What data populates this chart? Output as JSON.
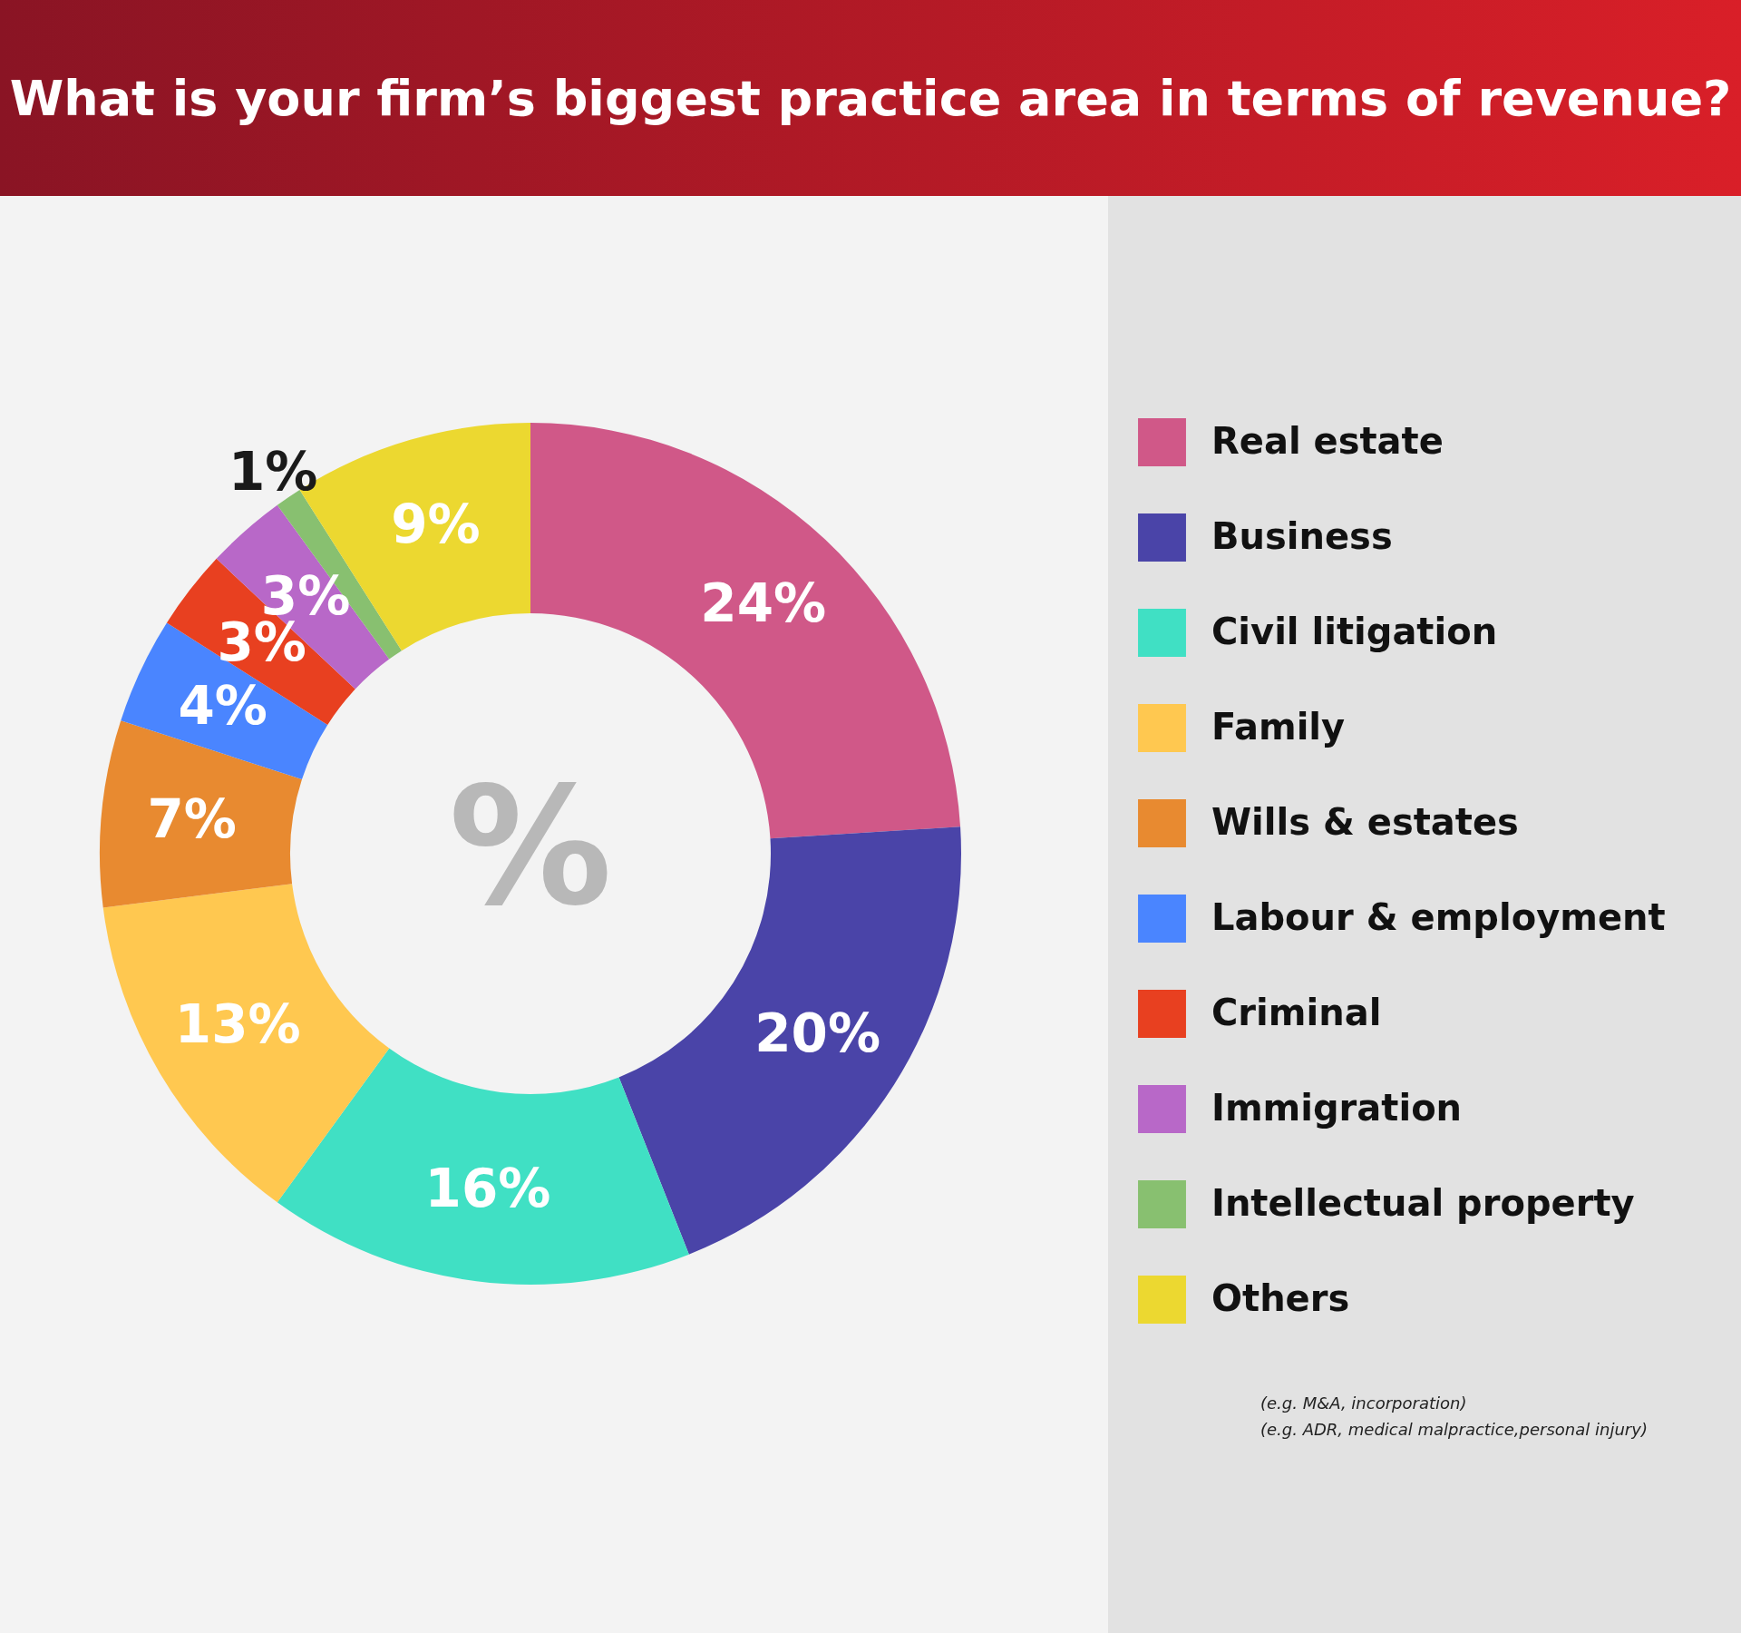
{
  "chart_data": {
    "type": "donut",
    "title": "What is your firm’s biggest practice area in terms of revenue?",
    "categories": [
      "Real estate",
      "Business",
      "Civil litigation",
      "Family",
      "Wills & estates",
      "Labour & employment",
      "Criminal",
      "Immigration",
      "Intellectual property",
      "Others"
    ],
    "values": [
      24,
      20,
      16,
      13,
      7,
      4,
      3,
      3,
      1,
      9
    ],
    "value_labels": [
      "24%",
      "20%",
      "16%",
      "13%",
      "7%",
      "4%",
      "3%",
      "3%",
      "1%",
      "9%"
    ],
    "colors": [
      "#d05888",
      "#4a44a8",
      "#40e0c4",
      "#ffc850",
      "#e88a30",
      "#4a85ff",
      "#e84020",
      "#b868c8",
      "#88c070",
      "#ecd830"
    ],
    "legend": "right",
    "annotations": [
      "%",
      "(e.g. M&A, incorporation)",
      "(e.g. ADR, medical malpractice,personal injury)"
    ]
  }
}
